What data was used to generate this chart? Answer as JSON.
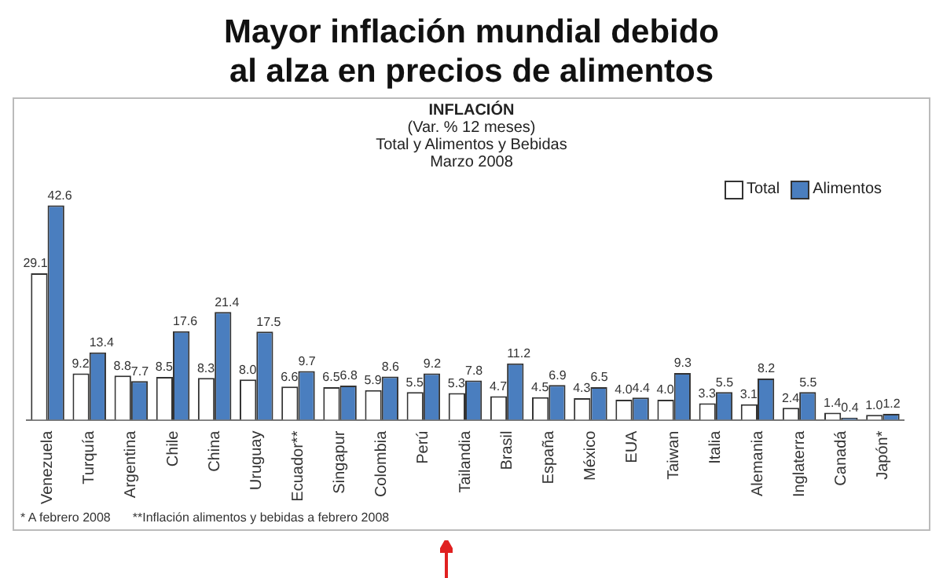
{
  "chart_data": {
    "type": "bar",
    "title": "Mayor inflación mundial debido al alza en precios de alimentos",
    "subtitle": "INFLACIÓN\n(Var. % 12 meses)\nTotal y Alimentos y Bebidas\nMarzo 2008",
    "categories": [
      "Venezuela",
      "Turquía",
      "Argentina",
      "Chile",
      "China",
      "Uruguay",
      "Ecuador**",
      "Singapur",
      "Colombia",
      "Perú",
      "Tailandia",
      "Brasil",
      "España",
      "México",
      "EUA",
      "Taiwan",
      "Italia",
      "Alemania",
      "Inglaterra",
      "Canadá",
      "Japón*"
    ],
    "series": [
      {
        "name": "Total",
        "color": "#ffffff",
        "values": [
          29.1,
          9.2,
          8.8,
          8.5,
          8.3,
          8.0,
          6.6,
          6.5,
          5.9,
          5.5,
          5.3,
          4.7,
          4.5,
          4.3,
          4.0,
          4.0,
          3.3,
          3.1,
          2.4,
          1.4,
          1.0
        ],
        "value_labels": [
          "29.1",
          "9.2",
          "8.8",
          "8.5",
          "8.3",
          "8.0",
          "6.6",
          "6.5",
          "5.9",
          "5.5",
          "5.3",
          "4.7",
          "4.5",
          "4.3",
          "4.0",
          "4.0",
          "3.3",
          "3.1",
          "2.4",
          "1.4",
          "1.0"
        ]
      },
      {
        "name": "Alimentos",
        "color": "#4a7ebf",
        "values": [
          42.6,
          13.4,
          7.7,
          17.6,
          21.4,
          17.5,
          9.7,
          6.8,
          8.6,
          9.2,
          7.8,
          11.2,
          6.9,
          6.5,
          4.4,
          9.3,
          5.5,
          8.2,
          5.5,
          0.4,
          1.2
        ],
        "value_labels": [
          "42.6",
          "13.4",
          "7.7",
          "17.6",
          "21.4",
          "17.5",
          "9.7",
          "6.8",
          "8.6",
          "9.2",
          "7.8",
          "11.2",
          "6.9",
          "6.5",
          "4.4",
          "9.3",
          "5.5",
          "8.2",
          "5.5",
          "0.4",
          "1.2"
        ]
      }
    ],
    "tick_labels": "x",
    "legend": "top right",
    "grid": false,
    "annotations": [
      "* A febrero 2008",
      "**Inflación alimentos y bebidas a febrero 2008"
    ]
  }
}
